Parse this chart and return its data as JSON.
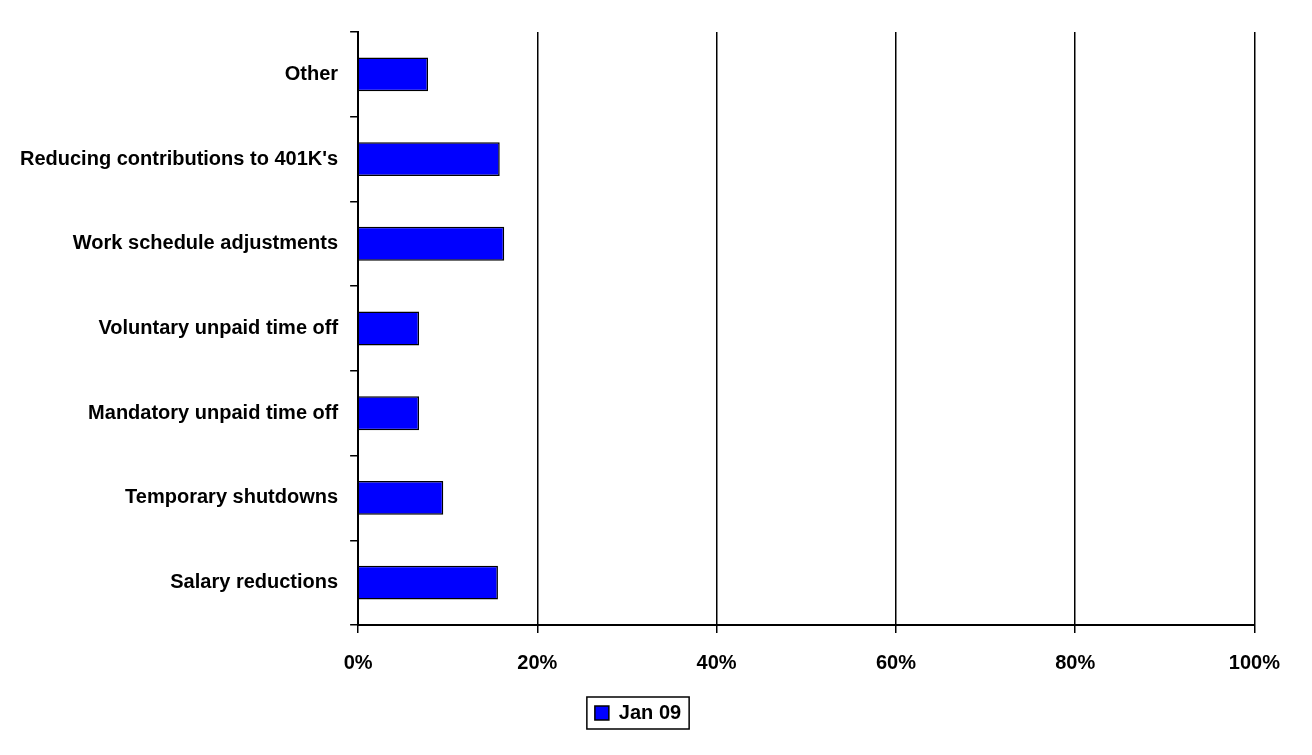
{
  "chart_data": {
    "type": "bar",
    "orientation": "horizontal",
    "categories": [
      "Other",
      "Reducing contributions to 401K's",
      "Work schedule adjustments",
      "Voluntary unpaid time off",
      "Mandatory unpaid time off",
      "Temporary shutdowns",
      "Salary reductions"
    ],
    "series": [
      {
        "name": "Jan 09",
        "color": "#0000ff",
        "values": [
          7.8,
          15.8,
          16.3,
          6.8,
          6.8,
          9.5,
          15.6
        ]
      }
    ],
    "xlim": [
      0,
      100
    ],
    "xticks": [
      {
        "value": 0,
        "label": "0%"
      },
      {
        "value": 20,
        "label": "20%"
      },
      {
        "value": 40,
        "label": "40%"
      },
      {
        "value": 60,
        "label": "60%"
      },
      {
        "value": 80,
        "label": "80%"
      },
      {
        "value": 100,
        "label": "100%"
      }
    ],
    "grid": "x",
    "legend": "bottom"
  }
}
